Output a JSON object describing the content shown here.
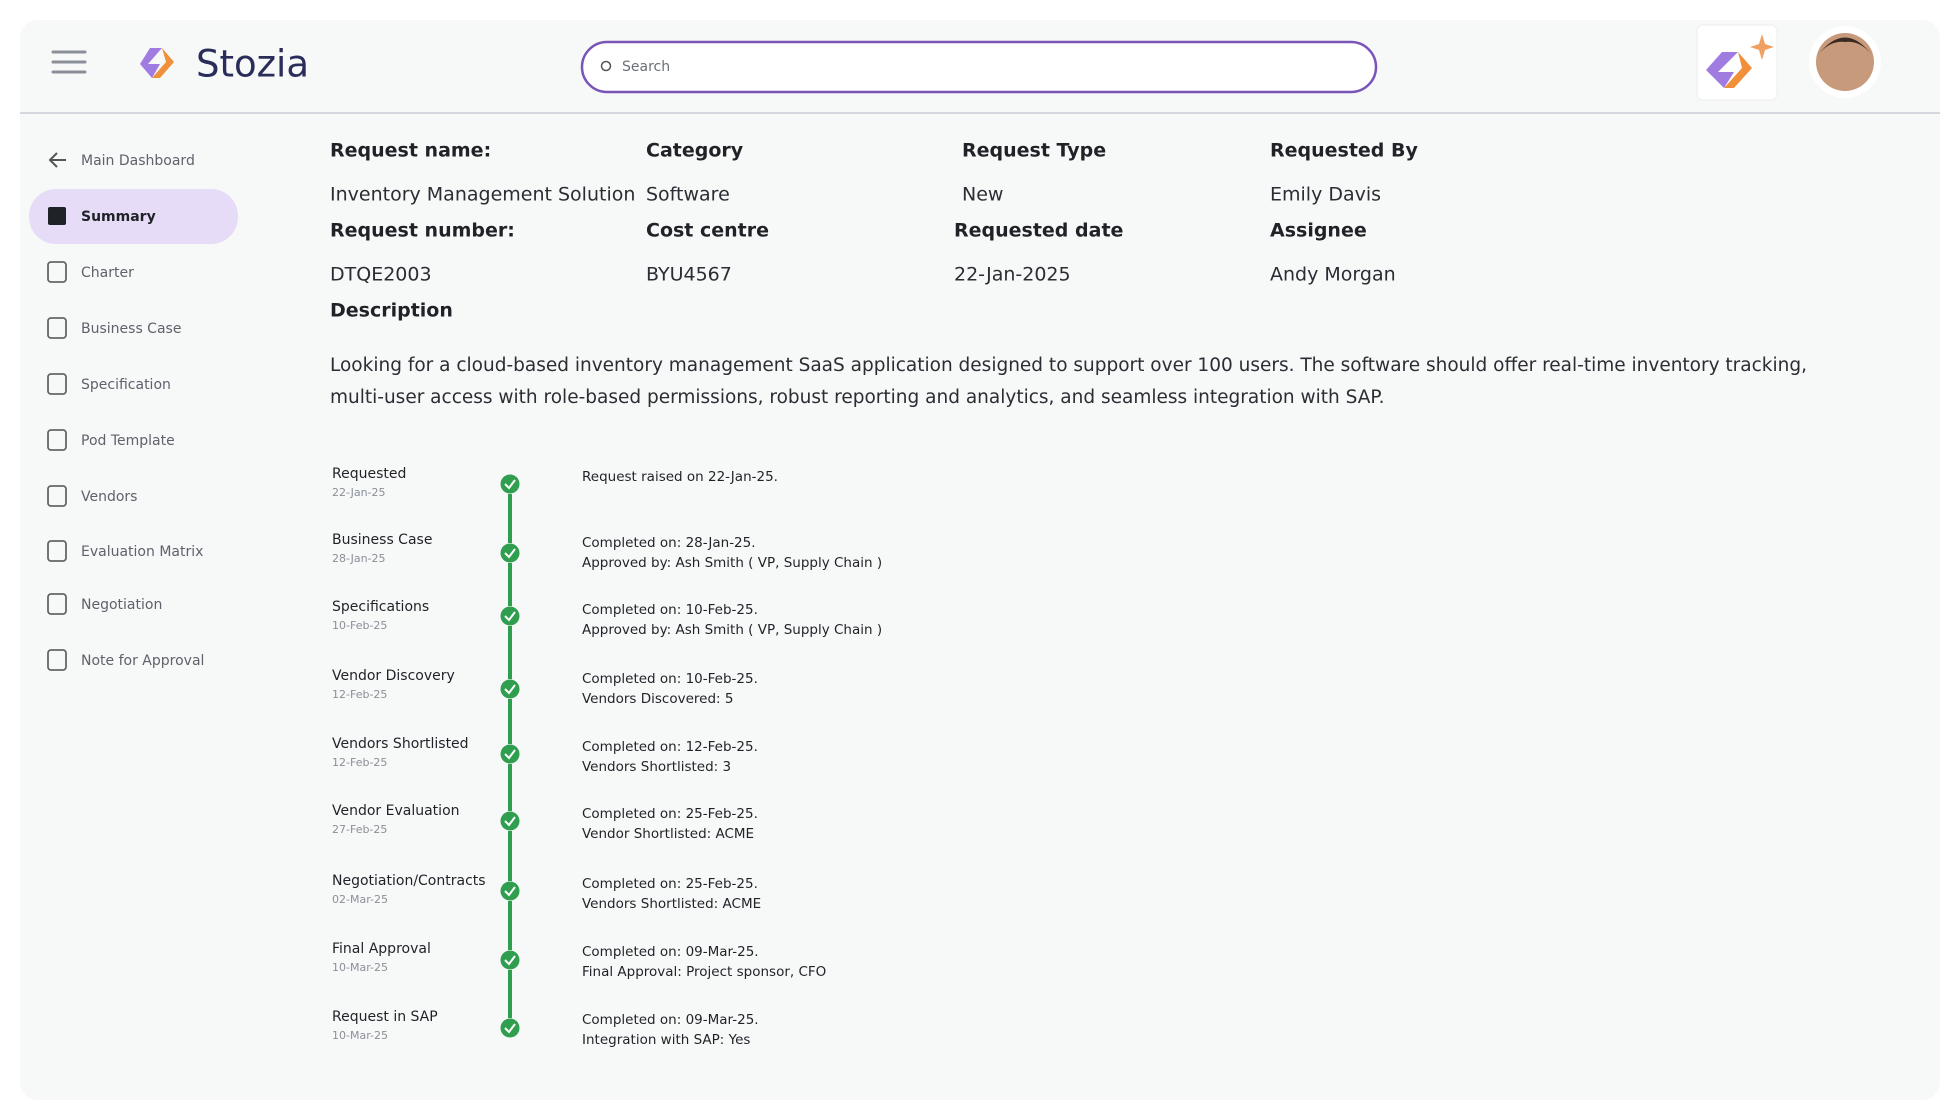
{
  "header": {
    "brand": "Stozia",
    "search_placeholder": "Search"
  },
  "sidebar": {
    "items": [
      "Main Dashboard",
      "Summary",
      "Charter",
      "Business Case",
      "Specification",
      "Pod Template",
      "Vendors",
      "Evaluation Matrix",
      "Negotiation",
      "Note for Approval"
    ]
  },
  "details": {
    "fields": [
      {
        "label": "Request name:",
        "value": "Inventory Management Solution"
      },
      {
        "label": "Category",
        "value": "Software"
      },
      {
        "label": "Request Type",
        "value": "New"
      },
      {
        "label": "Requested By",
        "value": "Emily Davis"
      },
      {
        "label": "Request number:",
        "value": "DTQE2003"
      },
      {
        "label": "Cost centre",
        "value": "BYU4567"
      },
      {
        "label": "Requested date",
        "value": "22-Jan-2025"
      },
      {
        "label": "Assignee",
        "value": "Andy Morgan"
      }
    ],
    "description_label": "Description",
    "description": [
      "Looking for a cloud-based inventory management SaaS application designed to support over 100 users. The software should offer real-time inventory tracking,",
      "multi-user access with role-based permissions, robust reporting and analytics, and seamless integration with SAP."
    ]
  },
  "timeline": [
    {
      "title": "Requested",
      "date": "22-Jan-25",
      "details": [
        "Request raised on 22-Jan-25."
      ]
    },
    {
      "title": "Business Case",
      "date": "28-Jan-25",
      "details": [
        "Completed on:  28-Jan-25.",
        "Approved by: Ash Smith ( VP, Supply Chain )"
      ]
    },
    {
      "title": "Specifications",
      "date": "10-Feb-25",
      "details": [
        "Completed on:  10-Feb-25.",
        "Approved by: Ash Smith ( VP, Supply Chain )"
      ]
    },
    {
      "title": "Vendor Discovery",
      "date": "12-Feb-25",
      "details": [
        "Completed on:  10-Feb-25.",
        "Vendors Discovered: 5"
      ]
    },
    {
      "title": "Vendors Shortlisted",
      "date": "12-Feb-25",
      "details": [
        "Completed on:  12-Feb-25.",
        "Vendors Shortlisted: 3"
      ]
    },
    {
      "title": "Vendor Evaluation",
      "date": "27-Feb-25",
      "details": [
        "Completed on:  25-Feb-25.",
        "Vendor Shortlisted: ACME"
      ]
    },
    {
      "title": "Negotiation/Contracts",
      "date": "02-Mar-25",
      "details": [
        "Completed on:  25-Feb-25.",
        "Vendors Shortlisted: ACME"
      ]
    },
    {
      "title": "Final Approval",
      "date": "10-Mar-25",
      "details": [
        "Completed on:  09-Mar-25.",
        "Final Approval: Project sponsor, CFO"
      ]
    },
    {
      "title": "Request in SAP",
      "date": "10-Mar-25",
      "details": [
        "Completed on:  09-Mar-25.",
        "Integration with SAP: Yes"
      ]
    }
  ]
}
